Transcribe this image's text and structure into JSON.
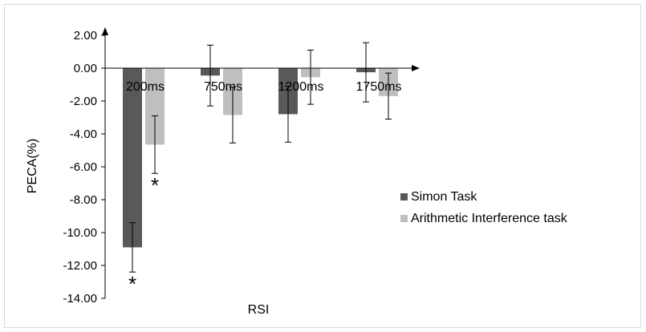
{
  "chart_data": {
    "type": "bar",
    "categories": [
      "200ms",
      "750ms",
      "1200ms",
      "1750ms"
    ],
    "series": [
      {
        "name": "Simon Task",
        "color": "#595959",
        "values": [
          -10.9,
          -0.45,
          -2.8,
          -0.25
        ],
        "errors": [
          1.5,
          1.85,
          1.7,
          1.8
        ],
        "significant": [
          true,
          false,
          false,
          false
        ]
      },
      {
        "name": "Arithmetic Interference task",
        "color": "#bfbfbf",
        "values": [
          -4.65,
          -2.85,
          -0.55,
          -1.7
        ],
        "errors": [
          1.75,
          1.7,
          1.65,
          1.4
        ],
        "significant": [
          true,
          false,
          false,
          false
        ]
      }
    ],
    "significance_marker": "*",
    "xlabel": "RSI",
    "ylabel": "PECA(%)",
    "ylim": [
      -14,
      2
    ],
    "yticks": [
      "2.00",
      "0.00",
      "-2.00",
      "-4.00",
      "-6.00",
      "-8.00",
      "-10.00",
      "-12.00",
      "-14.00"
    ],
    "grid": false,
    "legend_position": "right"
  }
}
